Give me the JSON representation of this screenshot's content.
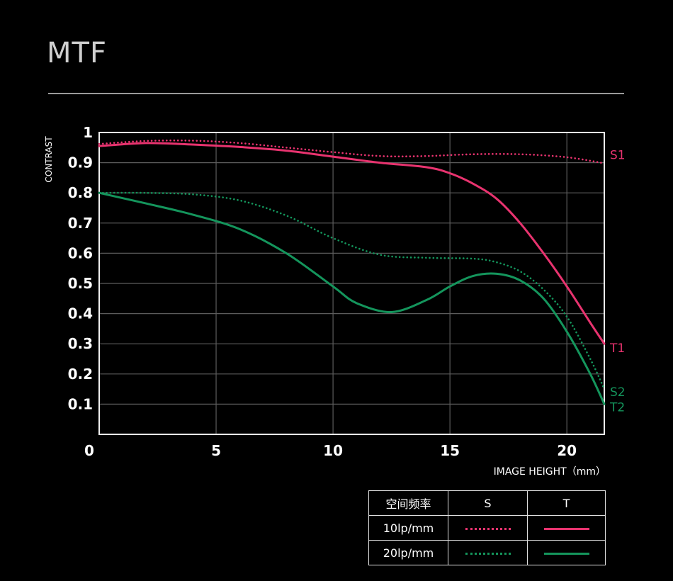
{
  "page": {
    "title": "MTF"
  },
  "chart_data": {
    "type": "line",
    "xlabel": "IMAGE HEIGHT（mm）",
    "ylabel": "CONTRAST",
    "xlim": [
      0,
      21.6
    ],
    "ylim": [
      0,
      1
    ],
    "x_ticks": [
      "0",
      "5",
      "10",
      "15",
      "20"
    ],
    "x_tick_values": [
      0,
      5,
      10,
      15,
      20
    ],
    "y_ticks": [
      "0.1",
      "0.2",
      "0.3",
      "0.4",
      "0.5",
      "0.6",
      "0.7",
      "0.8",
      "0.9",
      "1"
    ],
    "y_tick_values": [
      0.1,
      0.2,
      0.3,
      0.4,
      0.5,
      0.6,
      0.7,
      0.8,
      0.9,
      1.0
    ],
    "grid": true,
    "colors": {
      "pink": "#e8336f",
      "green": "#14955c"
    },
    "series": [
      {
        "name": "S1",
        "frequency": "10lp/mm",
        "direction": "S",
        "style": "dotted",
        "color": "#e8336f",
        "x": [
          0,
          2,
          4,
          6,
          8,
          10,
          12,
          14,
          16,
          18,
          20,
          21.6
        ],
        "y": [
          0.962,
          0.972,
          0.973,
          0.965,
          0.95,
          0.935,
          0.922,
          0.922,
          0.928,
          0.928,
          0.918,
          0.898
        ]
      },
      {
        "name": "T1",
        "frequency": "10lp/mm",
        "direction": "T",
        "style": "solid",
        "color": "#e8336f",
        "x": [
          0,
          2,
          4,
          6,
          8,
          10,
          12,
          14,
          15,
          16,
          17,
          18,
          19,
          20,
          21,
          21.6
        ],
        "y": [
          0.955,
          0.965,
          0.96,
          0.952,
          0.94,
          0.92,
          0.9,
          0.885,
          0.865,
          0.83,
          0.78,
          0.7,
          0.6,
          0.49,
          0.37,
          0.3
        ]
      },
      {
        "name": "S2",
        "frequency": "20lp/mm",
        "direction": "S",
        "style": "dotted",
        "color": "#14955c",
        "x": [
          0,
          2,
          4,
          6,
          8,
          10,
          12,
          14,
          16,
          17,
          18,
          19,
          20,
          21,
          21.6
        ],
        "y": [
          0.8,
          0.8,
          0.795,
          0.775,
          0.725,
          0.65,
          0.595,
          0.585,
          0.582,
          0.57,
          0.54,
          0.48,
          0.39,
          0.25,
          0.15
        ]
      },
      {
        "name": "T2",
        "frequency": "20lp/mm",
        "direction": "T",
        "style": "solid",
        "color": "#14955c",
        "x": [
          0,
          2,
          4,
          6,
          8,
          10,
          11,
          12.5,
          14,
          15,
          16,
          17,
          18,
          19,
          20,
          21,
          21.6
        ],
        "y": [
          0.8,
          0.765,
          0.728,
          0.68,
          0.6,
          0.49,
          0.435,
          0.405,
          0.445,
          0.49,
          0.525,
          0.532,
          0.51,
          0.45,
          0.34,
          0.2,
          0.1
        ]
      }
    ]
  },
  "legend": {
    "header": {
      "freq": "空间频率",
      "s": "S",
      "t": "T"
    },
    "rows": [
      {
        "label": "10lp/mm",
        "color": "#e8336f"
      },
      {
        "label": "20lp/mm",
        "color": "#14955c"
      }
    ]
  }
}
